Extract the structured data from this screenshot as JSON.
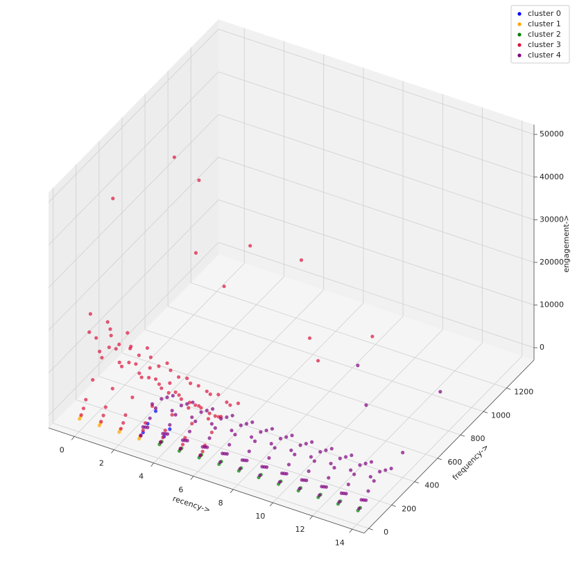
{
  "chart_data": {
    "type": "scatter3d",
    "xlabel": "recency->",
    "ylabel": "frequency->",
    "zlabel": "engagement->",
    "xlim": [
      -1.3,
      14.6
    ],
    "ylim": [
      -40,
      1440
    ],
    "zlim": [
      -2900,
      52300
    ],
    "xticks": [
      0,
      2,
      4,
      6,
      8,
      10,
      12,
      14
    ],
    "yticks": [
      0,
      200,
      400,
      600,
      800,
      1000,
      1200
    ],
    "zticks": [
      0,
      10000,
      20000,
      30000,
      40000,
      50000
    ],
    "grid": true,
    "legend": "upper right",
    "series": [
      {
        "name": "cluster 0",
        "color": "blue",
        "x": [
          3,
          3,
          4,
          4,
          3
        ],
        "y": [
          40,
          80,
          50,
          100,
          150
        ],
        "z": [
          500,
          1500,
          800,
          1200,
          2500
        ]
      },
      {
        "name": "cluster 1",
        "color": "orange",
        "x": [
          0,
          0,
          1,
          1,
          2,
          2,
          3,
          3
        ],
        "y": [
          5,
          15,
          5,
          15,
          5,
          15,
          5,
          15
        ],
        "z": [
          0,
          300,
          0,
          300,
          0,
          300,
          0,
          300
        ]
      },
      {
        "name": "cluster 2",
        "color": "green",
        "x": [
          4,
          4,
          5,
          5,
          6,
          6,
          7,
          7,
          8,
          8,
          9,
          9,
          10,
          10,
          11,
          11,
          12,
          12,
          13,
          13,
          14,
          14
        ],
        "y": [
          10,
          30,
          10,
          30,
          10,
          30,
          10,
          30,
          10,
          30,
          10,
          30,
          10,
          30,
          10,
          30,
          10,
          30,
          10,
          30,
          10,
          30
        ],
        "z": [
          100,
          200,
          100,
          200,
          100,
          200,
          100,
          200,
          100,
          200,
          100,
          200,
          100,
          200,
          100,
          200,
          100,
          200,
          100,
          200,
          100,
          200
        ]
      },
      {
        "name": "cluster 3",
        "color": "crimson",
        "x": [
          0,
          0,
          0,
          0,
          0,
          0,
          0,
          0,
          0,
          0,
          0,
          0,
          1,
          1,
          1,
          1,
          1,
          1,
          1,
          1,
          1,
          1,
          1,
          1,
          2,
          2,
          2,
          2,
          2,
          2,
          2,
          2,
          2,
          2,
          2,
          2,
          3,
          3,
          3,
          3,
          3,
          3,
          3,
          3,
          3,
          3,
          3,
          3,
          4,
          4,
          4,
          4,
          4,
          4,
          4,
          4,
          4,
          4,
          4,
          4,
          5,
          5,
          5,
          5,
          5,
          5,
          5,
          5,
          5,
          5,
          5,
          5,
          6,
          6,
          6,
          6,
          6,
          6,
          6,
          6,
          6,
          6,
          6,
          6,
          1,
          1,
          2,
          3,
          4,
          6,
          5,
          7,
          8,
          9
        ],
        "y": [
          20,
          60,
          120,
          200,
          280,
          150,
          90,
          350,
          40,
          250,
          180,
          100,
          20,
          60,
          120,
          200,
          280,
          150,
          90,
          350,
          40,
          250,
          180,
          100,
          20,
          60,
          120,
          200,
          280,
          150,
          90,
          350,
          40,
          250,
          180,
          100,
          20,
          60,
          120,
          200,
          280,
          150,
          90,
          350,
          40,
          250,
          180,
          100,
          20,
          60,
          120,
          200,
          280,
          150,
          90,
          350,
          40,
          250,
          180,
          100,
          20,
          60,
          120,
          200,
          280,
          150,
          90,
          350,
          40,
          250,
          180,
          100,
          20,
          60,
          120,
          200,
          280,
          150,
          90,
          350,
          40,
          250,
          180,
          100,
          123,
          658,
          700,
          500,
          800,
          900,
          400,
          800,
          700,
          1000
        ],
        "z": [
          500,
          3000,
          6000,
          9000,
          12000,
          15000,
          18000,
          8000,
          1500,
          16000,
          11000,
          22000,
          500,
          2800,
          5500,
          8500,
          11000,
          14000,
          16000,
          7000,
          1400,
          15000,
          10000,
          20000,
          400,
          2500,
          5000,
          7500,
          10000,
          12000,
          14000,
          6000,
          1200,
          13000,
          9000,
          17000,
          400,
          2200,
          4500,
          6500,
          8500,
          10000,
          12000,
          5000,
          1000,
          11000,
          8000,
          14000,
          400,
          2000,
          4000,
          5500,
          7000,
          8500,
          10000,
          4500,
          900,
          9000,
          7000,
          12000,
          400,
          1800,
          3500,
          5000,
          6000,
          7000,
          8000,
          4000,
          800,
          7500,
          6000,
          9000,
          400,
          1600,
          3000,
          4500,
          5000,
          6000,
          7000,
          3500,
          700,
          6500,
          5000,
          8000,
          50000,
          45000,
          40000,
          30000,
          25000,
          22000,
          28000,
          8000,
          7000,
          6000
        ]
      },
      {
        "name": "cluster 4",
        "color": "purple",
        "x": [
          3,
          3,
          3,
          3,
          3,
          3,
          3,
          3,
          3,
          3,
          4,
          4,
          4,
          4,
          4,
          4,
          4,
          4,
          4,
          4,
          5,
          5,
          5,
          5,
          5,
          5,
          5,
          5,
          5,
          5,
          6,
          6,
          6,
          6,
          6,
          6,
          6,
          6,
          6,
          6,
          7,
          7,
          7,
          7,
          7,
          7,
          7,
          7,
          7,
          7,
          8,
          8,
          8,
          8,
          8,
          8,
          8,
          8,
          8,
          8,
          9,
          9,
          9,
          9,
          9,
          9,
          9,
          9,
          9,
          9,
          10,
          10,
          10,
          10,
          10,
          10,
          10,
          10,
          10,
          10,
          11,
          11,
          11,
          11,
          11,
          11,
          11,
          11,
          11,
          11,
          12,
          12,
          12,
          12,
          12,
          12,
          12,
          12,
          12,
          12,
          13,
          13,
          13,
          13,
          13,
          13,
          13,
          13,
          13,
          13,
          14,
          14,
          14,
          14,
          14,
          14,
          14,
          14,
          14,
          14,
          10,
          11,
          13,
          14
        ],
        "y": [
          20,
          60,
          100,
          150,
          200,
          250,
          300,
          120,
          80,
          40,
          20,
          60,
          100,
          150,
          200,
          250,
          300,
          120,
          80,
          40,
          20,
          60,
          100,
          150,
          200,
          250,
          300,
          120,
          80,
          40,
          20,
          60,
          100,
          150,
          200,
          250,
          300,
          120,
          80,
          40,
          20,
          60,
          100,
          150,
          200,
          250,
          300,
          120,
          80,
          40,
          20,
          60,
          100,
          150,
          200,
          250,
          300,
          120,
          80,
          40,
          20,
          60,
          100,
          150,
          200,
          250,
          300,
          120,
          80,
          40,
          20,
          60,
          100,
          150,
          200,
          250,
          300,
          120,
          80,
          40,
          20,
          60,
          100,
          150,
          200,
          250,
          300,
          120,
          80,
          40,
          20,
          60,
          100,
          150,
          200,
          250,
          300,
          120,
          80,
          40,
          20,
          60,
          100,
          150,
          200,
          250,
          300,
          120,
          80,
          40,
          20,
          60,
          100,
          150,
          200,
          250,
          300,
          120,
          80,
          40,
          700,
          600,
          900,
          400
        ],
        "z": [
          300,
          1200,
          2200,
          3200,
          4000,
          3000,
          2000,
          5000,
          600,
          1800,
          300,
          1200,
          2200,
          3200,
          4000,
          3000,
          2000,
          5000,
          600,
          1800,
          300,
          1200,
          2200,
          3200,
          4000,
          3000,
          2000,
          5000,
          600,
          1800,
          300,
          1200,
          2200,
          3200,
          4000,
          3000,
          2000,
          5000,
          600,
          1800,
          300,
          1200,
          2200,
          3200,
          4000,
          3000,
          2000,
          5000,
          600,
          1800,
          300,
          1200,
          2200,
          3200,
          4000,
          3000,
          2000,
          5000,
          600,
          1800,
          300,
          1200,
          2200,
          3200,
          4000,
          3000,
          2000,
          5000,
          600,
          1800,
          300,
          1200,
          2200,
          3200,
          4000,
          3000,
          2000,
          5000,
          600,
          1800,
          300,
          1200,
          2200,
          3200,
          4000,
          3000,
          2000,
          5000,
          600,
          1800,
          300,
          1200,
          2200,
          3200,
          4000,
          3000,
          2000,
          5000,
          600,
          1800,
          300,
          1200,
          2200,
          3200,
          4000,
          3000,
          2000,
          5000,
          600,
          1800,
          300,
          1200,
          2200,
          3200,
          4000,
          3000,
          2000,
          5000,
          600,
          1800,
          9000,
          4000,
          2000,
          3000
        ]
      }
    ]
  }
}
